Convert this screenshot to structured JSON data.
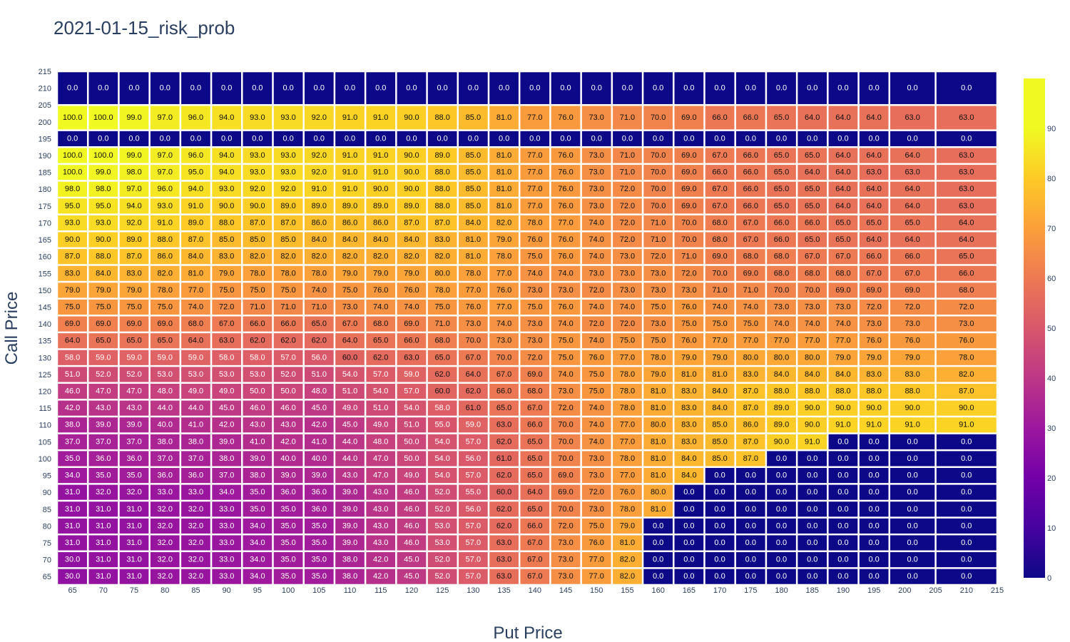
{
  "chart_data": {
    "type": "heatmap",
    "title": "2021-01-15_risk_prob",
    "xlabel": "Put Price",
    "ylabel": "Call Price",
    "colorscale": "plasma",
    "zlim": [
      0,
      100
    ],
    "x": [
      65,
      70,
      75,
      80,
      85,
      90,
      95,
      100,
      105,
      110,
      115,
      120,
      125,
      130,
      135,
      140,
      145,
      150,
      155,
      160,
      165,
      170,
      175,
      180,
      185,
      190,
      195,
      200,
      210
    ],
    "x_tick_labels": [
      65,
      70,
      75,
      80,
      85,
      90,
      95,
      100,
      105,
      110,
      115,
      120,
      125,
      130,
      135,
      140,
      145,
      150,
      155,
      160,
      165,
      170,
      175,
      180,
      185,
      190,
      195,
      200,
      205,
      210,
      215
    ],
    "y": [
      210,
      200,
      195,
      190,
      185,
      180,
      175,
      170,
      165,
      160,
      155,
      150,
      145,
      140,
      135,
      130,
      125,
      120,
      115,
      110,
      105,
      100,
      95,
      90,
      85,
      80,
      75,
      70,
      65
    ],
    "y_tick_labels": [
      215,
      210,
      205,
      200,
      195,
      190,
      185,
      180,
      175,
      170,
      165,
      160,
      155,
      150,
      145,
      140,
      135,
      130,
      125,
      120,
      115,
      110,
      105,
      100,
      95,
      90,
      85,
      80,
      75,
      70,
      65
    ],
    "colorbar_ticks": [
      0,
      10,
      20,
      30,
      40,
      50,
      60,
      70,
      80,
      90
    ],
    "z": [
      [
        0,
        0,
        0,
        0,
        0,
        0,
        0,
        0,
        0,
        0,
        0,
        0,
        0,
        0,
        0,
        0,
        0,
        0,
        0,
        0,
        0,
        0,
        0,
        0,
        0,
        0,
        0,
        0,
        0
      ],
      [
        100,
        100,
        99,
        97,
        96,
        94,
        93,
        93,
        92,
        91,
        91,
        90,
        88,
        85,
        81,
        77,
        76,
        73,
        71,
        70,
        69,
        66,
        66,
        65,
        64,
        64,
        64,
        63,
        63
      ],
      [
        0,
        0,
        0,
        0,
        0,
        0,
        0,
        0,
        0,
        0,
        0,
        0,
        0,
        0,
        0,
        0,
        0,
        0,
        0,
        0,
        0,
        0,
        0,
        0,
        0,
        0,
        0,
        0,
        0
      ],
      [
        100,
        100,
        99,
        97,
        96,
        94,
        93,
        93,
        92,
        91,
        91,
        90,
        89,
        85,
        81,
        77,
        76,
        73,
        71,
        70,
        69,
        67,
        66,
        65,
        65,
        64,
        64,
        64,
        63
      ],
      [
        100,
        99,
        98,
        97,
        95,
        94,
        93,
        93,
        92,
        91,
        91,
        90,
        88,
        85,
        81,
        77,
        76,
        73,
        71,
        70,
        69,
        66,
        66,
        65,
        64,
        64,
        63,
        63,
        63
      ],
      [
        98,
        98,
        97,
        96,
        94,
        93,
        92,
        92,
        91,
        91,
        90,
        90,
        88,
        85,
        81,
        77,
        76,
        73,
        72,
        70,
        69,
        67,
        66,
        65,
        65,
        64,
        64,
        64,
        63
      ],
      [
        95,
        95,
        94,
        93,
        91,
        90,
        90,
        89,
        89,
        89,
        89,
        89,
        88,
        85,
        81,
        77,
        76,
        73,
        72,
        70,
        69,
        67,
        66,
        65,
        65,
        64,
        64,
        64,
        63
      ],
      [
        93,
        93,
        92,
        91,
        89,
        88,
        87,
        87,
        86,
        86,
        86,
        87,
        87,
        84,
        82,
        78,
        77,
        74,
        72,
        71,
        70,
        68,
        67,
        66,
        66,
        65,
        65,
        65,
        64
      ],
      [
        90,
        90,
        89,
        88,
        87,
        85,
        85,
        85,
        84,
        84,
        84,
        84,
        83,
        81,
        79,
        76,
        76,
        74,
        72,
        71,
        70,
        68,
        67,
        66,
        65,
        65,
        64,
        64,
        64
      ],
      [
        87,
        88,
        87,
        86,
        84,
        83,
        82,
        82,
        82,
        82,
        82,
        82,
        82,
        81,
        78,
        75,
        76,
        74,
        73,
        72,
        71,
        69,
        68,
        68,
        67,
        67,
        66,
        66,
        65
      ],
      [
        83,
        84,
        83,
        82,
        81,
        79,
        78,
        78,
        78,
        79,
        79,
        79,
        80,
        78,
        77,
        74,
        74,
        73,
        73,
        73,
        72,
        70,
        69,
        68,
        68,
        68,
        67,
        67,
        66
      ],
      [
        79,
        79,
        79,
        78,
        77,
        75,
        75,
        75,
        74,
        75,
        76,
        76,
        78,
        77,
        76,
        73,
        73,
        72,
        73,
        73,
        73,
        71,
        71,
        70,
        70,
        69,
        69,
        69,
        68
      ],
      [
        75,
        75,
        75,
        75,
        74,
        72,
        71,
        71,
        71,
        73,
        74,
        74,
        75,
        76,
        77,
        75,
        76,
        74,
        74,
        75,
        76,
        74,
        74,
        73,
        73,
        73,
        72,
        72,
        72
      ],
      [
        69,
        69,
        69,
        69,
        68,
        67,
        66,
        66,
        65,
        67,
        68,
        69,
        71,
        73,
        74,
        73,
        74,
        72,
        72,
        73,
        75,
        75,
        75,
        74,
        74,
        74,
        73,
        73,
        73
      ],
      [
        64,
        65,
        65,
        65,
        64,
        63,
        62,
        62,
        62,
        64,
        65,
        66,
        68,
        70,
        73,
        73,
        75,
        74,
        75,
        75,
        76,
        77,
        77,
        77,
        77,
        77,
        76,
        76,
        76
      ],
      [
        58,
        59,
        59,
        59,
        59,
        58,
        58,
        57,
        56,
        60,
        62,
        63,
        65,
        67,
        70,
        72,
        75,
        76,
        77,
        78,
        79,
        79,
        80,
        80,
        80,
        79,
        79,
        79,
        78
      ],
      [
        51,
        52,
        52,
        53,
        53,
        53,
        53,
        52,
        51,
        54,
        57,
        59,
        62,
        64,
        67,
        69,
        74,
        75,
        78,
        79,
        81,
        81,
        83,
        84,
        84,
        84,
        83,
        83,
        82
      ],
      [
        46,
        47,
        47,
        48,
        49,
        49,
        50,
        50,
        48,
        51,
        54,
        57,
        60,
        62,
        66,
        68,
        73,
        75,
        78,
        81,
        83,
        84,
        87,
        88,
        88,
        88,
        88,
        88,
        87
      ],
      [
        42,
        43,
        43,
        44,
        44,
        45,
        46,
        46,
        45,
        49,
        51,
        54,
        58,
        61,
        65,
        67,
        72,
        74,
        78,
        81,
        83,
        84,
        87,
        89,
        90,
        90,
        90,
        90,
        90
      ],
      [
        38,
        39,
        39,
        40,
        41,
        42,
        43,
        43,
        42,
        45,
        49,
        51,
        55,
        59,
        63,
        66,
        70,
        74,
        77,
        80,
        83,
        85,
        86,
        89,
        90,
        91,
        91,
        91,
        91
      ],
      [
        37,
        37,
        37,
        38,
        38,
        39,
        41,
        42,
        41,
        44,
        48,
        50,
        54,
        57,
        62,
        65,
        70,
        74,
        77,
        81,
        83,
        85,
        87,
        90,
        91,
        0,
        0,
        0,
        0
      ],
      [
        35,
        36,
        36,
        37,
        37,
        38,
        39,
        40,
        40,
        44,
        47,
        50,
        54,
        56,
        61,
        65,
        70,
        73,
        78,
        81,
        84,
        85,
        87,
        0,
        0,
        0,
        0,
        0,
        0
      ],
      [
        34,
        35,
        35,
        36,
        36,
        37,
        38,
        39,
        39,
        43,
        47,
        49,
        54,
        57,
        62,
        65,
        69,
        73,
        77,
        81,
        84,
        0,
        0,
        0,
        0,
        0,
        0,
        0,
        0
      ],
      [
        31,
        32,
        32,
        33,
        33,
        34,
        35,
        36,
        36,
        39,
        43,
        46,
        52,
        55,
        60,
        64,
        69,
        72,
        76,
        80,
        0,
        0,
        0,
        0,
        0,
        0,
        0,
        0,
        0
      ],
      [
        31,
        31,
        31,
        32,
        32,
        33,
        35,
        35,
        36,
        39,
        43,
        46,
        52,
        56,
        62,
        65,
        70,
        73,
        78,
        81,
        0,
        0,
        0,
        0,
        0,
        0,
        0,
        0,
        0
      ],
      [
        31,
        31,
        31,
        32,
        32,
        33,
        34,
        35,
        35,
        39,
        43,
        46,
        53,
        57,
        62,
        66,
        72,
        75,
        79,
        0,
        0,
        0,
        0,
        0,
        0,
        0,
        0,
        0,
        0
      ],
      [
        31,
        31,
        31,
        32,
        32,
        33,
        34,
        35,
        35,
        39,
        43,
        46,
        53,
        57,
        63,
        67,
        73,
        76,
        81,
        0,
        0,
        0,
        0,
        0,
        0,
        0,
        0,
        0,
        0
      ],
      [
        30,
        31,
        31,
        32,
        32,
        33,
        34,
        35,
        35,
        38,
        42,
        45,
        52,
        57,
        63,
        67,
        73,
        77,
        82,
        0,
        0,
        0,
        0,
        0,
        0,
        0,
        0,
        0,
        0
      ],
      [
        30,
        31,
        31,
        32,
        32,
        33,
        34,
        35,
        35,
        38,
        42,
        45,
        52,
        57,
        63,
        67,
        73,
        77,
        82,
        0,
        0,
        0,
        0,
        0,
        0,
        0,
        0,
        0,
        0
      ]
    ]
  }
}
